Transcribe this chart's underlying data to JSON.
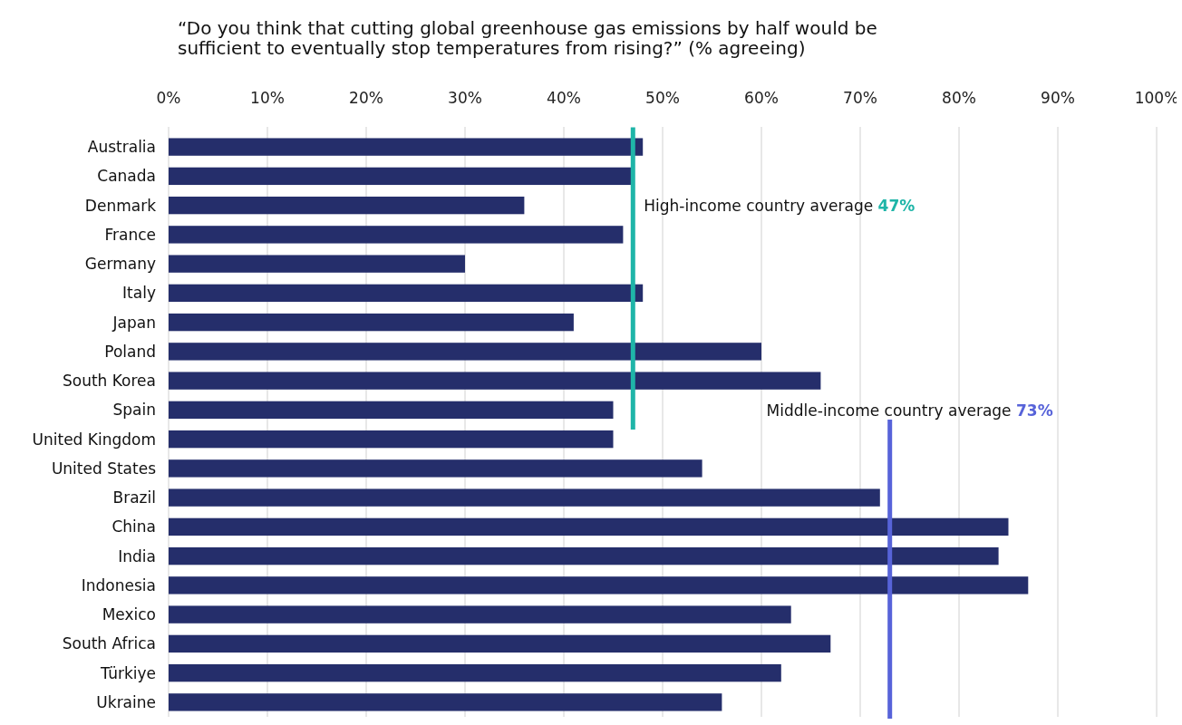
{
  "chart_data": {
    "type": "bar",
    "orientation": "horizontal",
    "title": "“Do you think that cutting global greenhouse gas emissions by half would be sufficient to eventually stop temperatures from rising?” (% agreeing)",
    "categories": [
      "Australia",
      "Canada",
      "Denmark",
      "France",
      "Germany",
      "Italy",
      "Japan",
      "Poland",
      "South Korea",
      "Spain",
      "United Kingdom",
      "United States",
      "Brazil",
      "China",
      "India",
      "Indonesia",
      "Mexico",
      "South Africa",
      "Türkiye",
      "Ukraine"
    ],
    "values": [
      48,
      47,
      36,
      46,
      30,
      48,
      41,
      60,
      66,
      45,
      45,
      54,
      72,
      85,
      84,
      87,
      63,
      67,
      62,
      56
    ],
    "color": "#252e6b",
    "xlim": [
      0,
      100
    ],
    "xticks": [
      {
        "value": 0,
        "label": "0%"
      },
      {
        "value": 10,
        "label": "10%"
      },
      {
        "value": 20,
        "label": "20%"
      },
      {
        "value": 30,
        "label": "30%"
      },
      {
        "value": 40,
        "label": "40%"
      },
      {
        "value": 50,
        "label": "50%"
      },
      {
        "value": 60,
        "label": "60%"
      },
      {
        "value": 70,
        "label": "70%"
      },
      {
        "value": 80,
        "label": "80%"
      },
      {
        "value": 90,
        "label": "90%"
      },
      {
        "value": 100,
        "label": "100%"
      }
    ],
    "grid": "x",
    "ref_lines": [
      {
        "axis": "x",
        "value": 47,
        "label": "High-income country average 47%",
        "color": "#1fb5a8"
      },
      {
        "axis": "x",
        "value": 73,
        "label": "Middle-income country average 73%",
        "color": "#5763d9"
      }
    ]
  }
}
